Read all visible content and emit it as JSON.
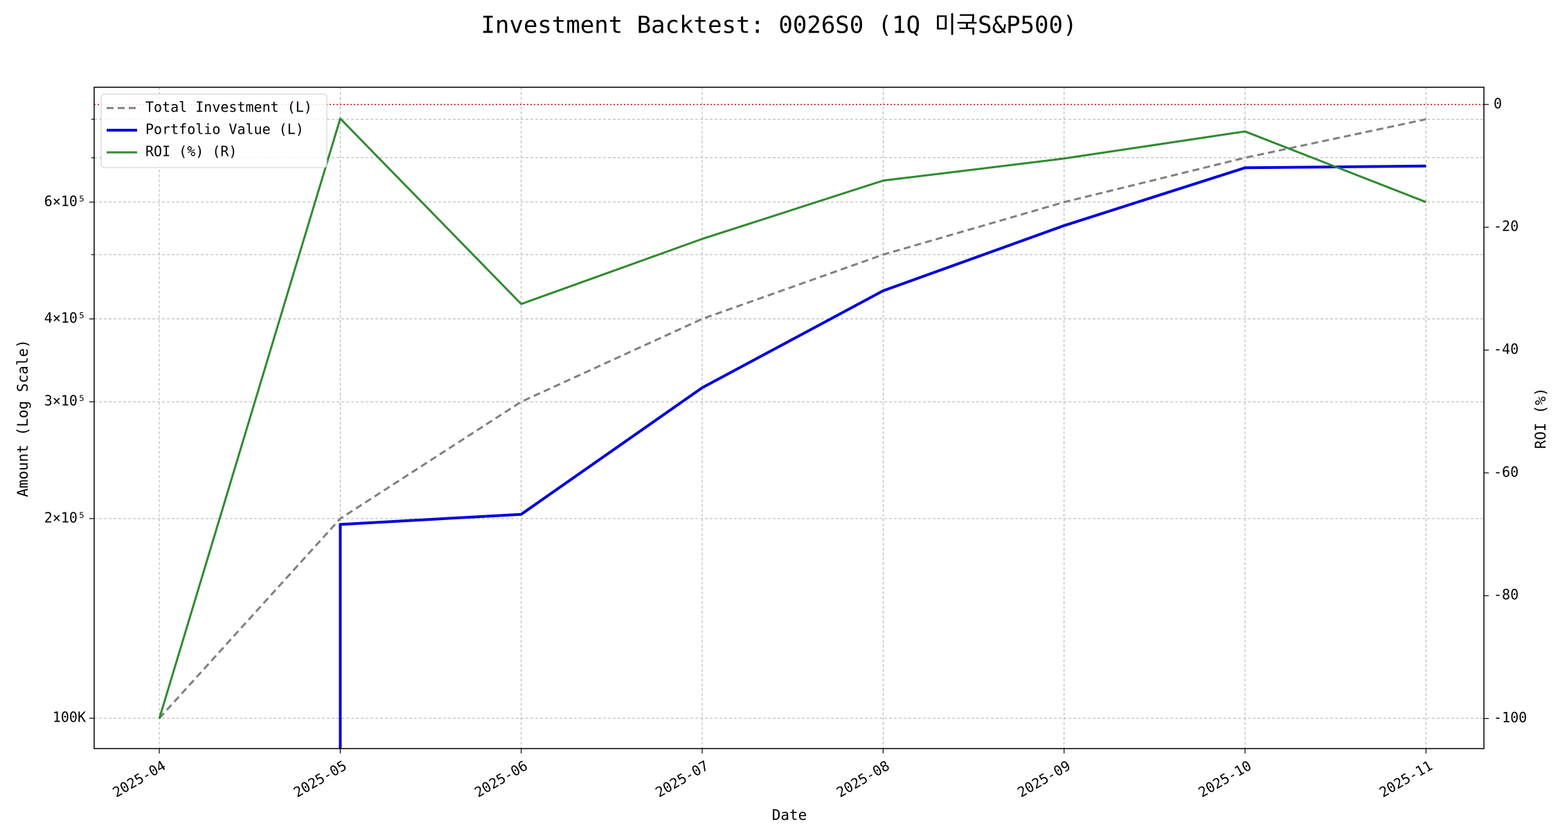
{
  "chart_data": {
    "type": "line",
    "title": "Investment Backtest: 0026S0 (1Q 미국S&P500)",
    "x_label": "Date",
    "y_label": "Amount (Log Scale)",
    "y2_label": "ROI (%)",
    "y_scale": "log",
    "x": [
      "2025-04",
      "2025-05",
      "2025-06",
      "2025-07",
      "2025-08",
      "2025-09",
      "2025-10",
      "2025-11"
    ],
    "ylim": [
      90000,
      894000
    ],
    "yticks": [
      {
        "value": 100000,
        "label": "100K",
        "color": "#0000dd"
      },
      {
        "value": 200000,
        "label": "2×10⁵"
      },
      {
        "value": 300000,
        "label": "3×10⁵"
      },
      {
        "value": 400000,
        "label": "4×10⁵"
      },
      {
        "value": 600000,
        "label": "6×10⁵"
      }
    ],
    "yminor_ticks": [
      500000,
      700000,
      800000
    ],
    "y2lim": [
      -104.9,
      2.8
    ],
    "y2ticks": [
      -100,
      -80,
      -60,
      -40,
      -20,
      0
    ],
    "grid": true,
    "legend": "upper left",
    "reference_line": {
      "value": 0,
      "axis": "y2",
      "color": "#cc0000"
    },
    "series": [
      {
        "name": "Total Investment (L)",
        "color": "#808080",
        "style": "dashed",
        "width": 3,
        "values": [
          100000,
          200000,
          300000,
          400000,
          500000,
          600000,
          700000,
          800000
        ]
      },
      {
        "name": "Portfolio Value (L)",
        "color": "#0000dd",
        "style": "solid",
        "width": 4,
        "values": [
          0,
          196000,
          203000,
          315000,
          441000,
          553000,
          676000,
          680000
        ]
      },
      {
        "name": "ROI (%) (R)",
        "color": "#2e8b2e",
        "style": "solid",
        "width": 3,
        "axis": "y2",
        "values": [
          -100,
          -2.3,
          -32.5,
          -21.9,
          -12.4,
          -8.8,
          -4.4,
          -15.9
        ]
      }
    ]
  }
}
